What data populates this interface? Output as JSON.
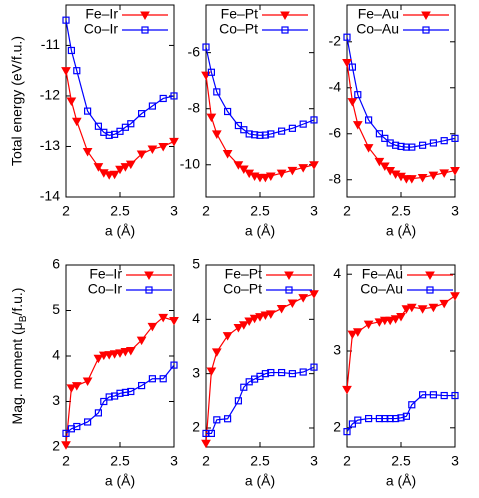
{
  "chart_data": [
    {
      "type": "line",
      "xlabel": "a (Å)",
      "ylabel": "Total energy (eV/f.u.)",
      "x": [
        2,
        2.05,
        2.1,
        2.2,
        2.3,
        2.35,
        2.4,
        2.45,
        2.5,
        2.55,
        2.6,
        2.7,
        2.8,
        2.9,
        3
      ],
      "xlim": [
        2,
        3
      ],
      "xticks": [
        2,
        2.5,
        3
      ],
      "ylim": [
        -14,
        -10.2
      ],
      "yticks": [
        -11,
        -12,
        -13,
        -14
      ],
      "legend": "top-right",
      "series": [
        {
          "name": "Fe–Ir",
          "color": "#ff0000",
          "marker": "triangle-down",
          "values": [
            -11.5,
            -12.1,
            -12.5,
            -13.1,
            -13.4,
            -13.52,
            -13.56,
            -13.55,
            -13.45,
            -13.4,
            -13.35,
            -13.15,
            -13.05,
            -13.0,
            -12.9
          ]
        },
        {
          "name": "Co–Ir",
          "color": "#0000ff",
          "marker": "square",
          "values": [
            -10.5,
            -11.1,
            -11.5,
            -12.3,
            -12.6,
            -12.72,
            -12.78,
            -12.76,
            -12.7,
            -12.62,
            -12.55,
            -12.35,
            -12.2,
            -12.05,
            -12.0
          ]
        }
      ]
    },
    {
      "type": "line",
      "xlabel": "a (Å)",
      "x": [
        2,
        2.05,
        2.1,
        2.2,
        2.3,
        2.35,
        2.4,
        2.45,
        2.5,
        2.55,
        2.6,
        2.7,
        2.8,
        2.9,
        3
      ],
      "xlim": [
        2,
        3
      ],
      "xticks": [
        2,
        2.5,
        3
      ],
      "ylim": [
        -11.15,
        -4.3
      ],
      "yticks": [
        -6,
        -8,
        -10
      ],
      "legend": "top-right",
      "series": [
        {
          "name": "Fe–Pt",
          "color": "#ff0000",
          "marker": "triangle-down",
          "values": [
            -6.8,
            -8.3,
            -8.9,
            -9.6,
            -10.0,
            -10.15,
            -10.3,
            -10.4,
            -10.45,
            -10.45,
            -10.4,
            -10.3,
            -10.2,
            -10.1,
            -10.0
          ]
        },
        {
          "name": "Co–Pt",
          "color": "#0000ff",
          "marker": "square",
          "values": [
            -5.8,
            -6.7,
            -7.4,
            -8.1,
            -8.6,
            -8.75,
            -8.9,
            -8.93,
            -8.95,
            -8.94,
            -8.9,
            -8.8,
            -8.7,
            -8.55,
            -8.4
          ]
        }
      ]
    },
    {
      "type": "line",
      "xlabel": "a (Å)",
      "x": [
        2,
        2.05,
        2.1,
        2.2,
        2.3,
        2.35,
        2.4,
        2.45,
        2.5,
        2.55,
        2.6,
        2.7,
        2.8,
        2.9,
        3
      ],
      "xlim": [
        2,
        3
      ],
      "xticks": [
        2,
        2.5,
        3
      ],
      "ylim": [
        -8.75,
        -0.4
      ],
      "yticks": [
        -2,
        -4,
        -6,
        -8
      ],
      "legend": "top-right",
      "series": [
        {
          "name": "Fe–Au",
          "color": "#ff0000",
          "marker": "triangle-down",
          "values": [
            -2.9,
            -4.6,
            -5.6,
            -6.6,
            -7.2,
            -7.4,
            -7.6,
            -7.75,
            -7.85,
            -7.95,
            -7.95,
            -7.9,
            -7.8,
            -7.7,
            -7.6
          ]
        },
        {
          "name": "Co–Au",
          "color": "#0000ff",
          "marker": "square",
          "values": [
            -1.8,
            -3.1,
            -4.3,
            -5.4,
            -6.0,
            -6.2,
            -6.4,
            -6.5,
            -6.55,
            -6.58,
            -6.58,
            -6.5,
            -6.4,
            -6.3,
            -6.2
          ]
        }
      ]
    },
    {
      "type": "line",
      "xlabel": "a (Å)",
      "ylabel_parts": [
        "Mag. moment (μ",
        "B",
        "/f.u.)"
      ],
      "x": [
        2,
        2.05,
        2.1,
        2.2,
        2.3,
        2.35,
        2.4,
        2.45,
        2.5,
        2.55,
        2.6,
        2.7,
        2.8,
        2.9,
        3
      ],
      "xlim": [
        2,
        3
      ],
      "xticks": [
        2,
        2.5,
        3
      ],
      "ylim": [
        2,
        6
      ],
      "yticks": [
        2,
        3,
        4,
        5,
        6
      ],
      "legend": "top-left",
      "series": [
        {
          "name": "Fe–Ir",
          "color": "#ff0000",
          "marker": "triangle-down",
          "values": [
            2.05,
            3.3,
            3.35,
            3.45,
            3.95,
            4.02,
            4.03,
            4.05,
            4.07,
            4.1,
            4.12,
            4.35,
            4.65,
            4.85,
            4.78
          ]
        },
        {
          "name": "Co–Ir",
          "color": "#0000ff",
          "marker": "square",
          "values": [
            2.3,
            2.4,
            2.45,
            2.55,
            2.75,
            3.0,
            3.1,
            3.12,
            3.18,
            3.2,
            3.22,
            3.35,
            3.5,
            3.5,
            3.8
          ]
        }
      ]
    },
    {
      "type": "line",
      "xlabel": "a (Å)",
      "x": [
        2,
        2.05,
        2.1,
        2.2,
        2.3,
        2.35,
        2.4,
        2.45,
        2.5,
        2.55,
        2.6,
        2.7,
        2.8,
        2.9,
        3
      ],
      "xlim": [
        2,
        3
      ],
      "xticks": [
        2,
        2.5,
        3
      ],
      "ylim": [
        1.65,
        5
      ],
      "yticks": [
        2,
        3,
        4,
        5
      ],
      "legend": "top-left",
      "series": [
        {
          "name": "Fe–Pt",
          "color": "#ff0000",
          "marker": "triangle-down",
          "values": [
            1.72,
            3.05,
            3.4,
            3.7,
            3.85,
            3.9,
            3.97,
            4.02,
            4.05,
            4.08,
            4.1,
            4.2,
            4.3,
            4.4,
            4.47
          ]
        },
        {
          "name": "Co–Pt",
          "color": "#0000ff",
          "marker": "square",
          "values": [
            1.9,
            1.9,
            2.15,
            2.17,
            2.5,
            2.75,
            2.85,
            2.9,
            2.95,
            3.0,
            3.02,
            3.02,
            3.0,
            3.03,
            3.12
          ]
        }
      ]
    },
    {
      "type": "line",
      "xlabel": "a (Å)",
      "x": [
        2,
        2.05,
        2.1,
        2.2,
        2.3,
        2.35,
        2.4,
        2.45,
        2.5,
        2.55,
        2.6,
        2.7,
        2.8,
        2.9,
        3
      ],
      "xlim": [
        2,
        3
      ],
      "xticks": [
        2,
        2.5,
        3
      ],
      "ylim": [
        1.75,
        4.12
      ],
      "yticks": [
        2,
        3,
        4
      ],
      "legend": "top-left",
      "series": [
        {
          "name": "Fe–Au",
          "color": "#ff0000",
          "marker": "triangle-down",
          "values": [
            2.5,
            3.22,
            3.25,
            3.35,
            3.38,
            3.4,
            3.4,
            3.42,
            3.45,
            3.55,
            3.57,
            3.55,
            3.57,
            3.62,
            3.72
          ]
        },
        {
          "name": "Co–Au",
          "color": "#0000ff",
          "marker": "square",
          "values": [
            1.95,
            2.05,
            2.1,
            2.12,
            2.12,
            2.12,
            2.12,
            2.12,
            2.13,
            2.15,
            2.3,
            2.43,
            2.43,
            2.42,
            2.42
          ]
        }
      ]
    }
  ]
}
